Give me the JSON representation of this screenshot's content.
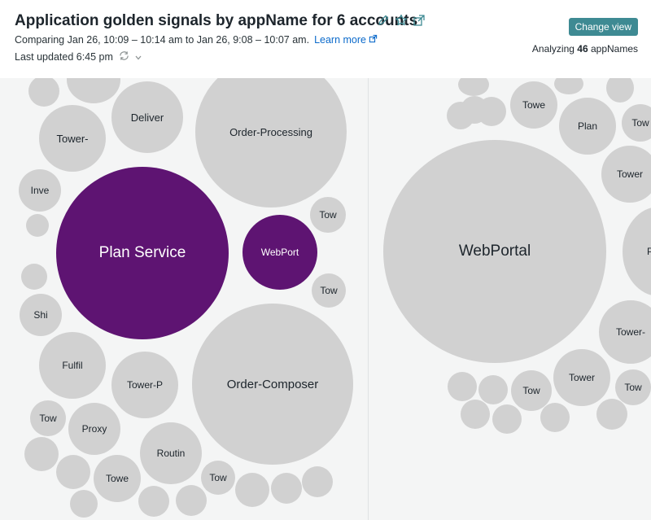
{
  "header": {
    "title": "Application golden signals by appName for 6 accounts",
    "compare_text": "Comparing Jan 26, 10:09 – 10:14 am to Jan 26, 9:08 – 10:07 am.",
    "learn_more": "Learn more",
    "last_updated": "Last updated 6:45 pm",
    "change_view": "Change view",
    "analyzing_prefix": "Analyzing",
    "analyzing_count": "46",
    "analyzing_suffix": "appNames",
    "icons": [
      "pencil-icon",
      "star-icon",
      "external-link-icon",
      "refresh-icon",
      "chevron-down-icon"
    ]
  },
  "colors": {
    "active": "#5e1472",
    "inactive": "#d1d1d1",
    "button": "#3e8a93",
    "link": "#0b6acb"
  },
  "left_panel": {
    "labels": {
      "deliver": "Deliver",
      "order_processing": "Order-Processing",
      "tower_a": "Tower-",
      "inve": "Inve",
      "plan_service": "Plan Service",
      "webport": "WebPort",
      "tow_a": "Tow",
      "tow_b": "Tow",
      "shi": "Shi",
      "fulfil": "Fulfil",
      "tower_p": "Tower-P",
      "order_composer": "Order-Composer",
      "tow_c": "Tow",
      "proxy": "Proxy",
      "routin": "Routin",
      "towe": "Towe",
      "tow_d": "Tow"
    }
  },
  "right_panel": {
    "labels": {
      "towe": "Towe",
      "plan": "Plan",
      "tow_a": "Tow",
      "tower_a": "Tower",
      "webportal": "WebPortal",
      "p": "P",
      "tower_b": "Tower-",
      "tower_c": "Tower",
      "tow_b": "Tow",
      "tow_c": "Tow"
    }
  }
}
